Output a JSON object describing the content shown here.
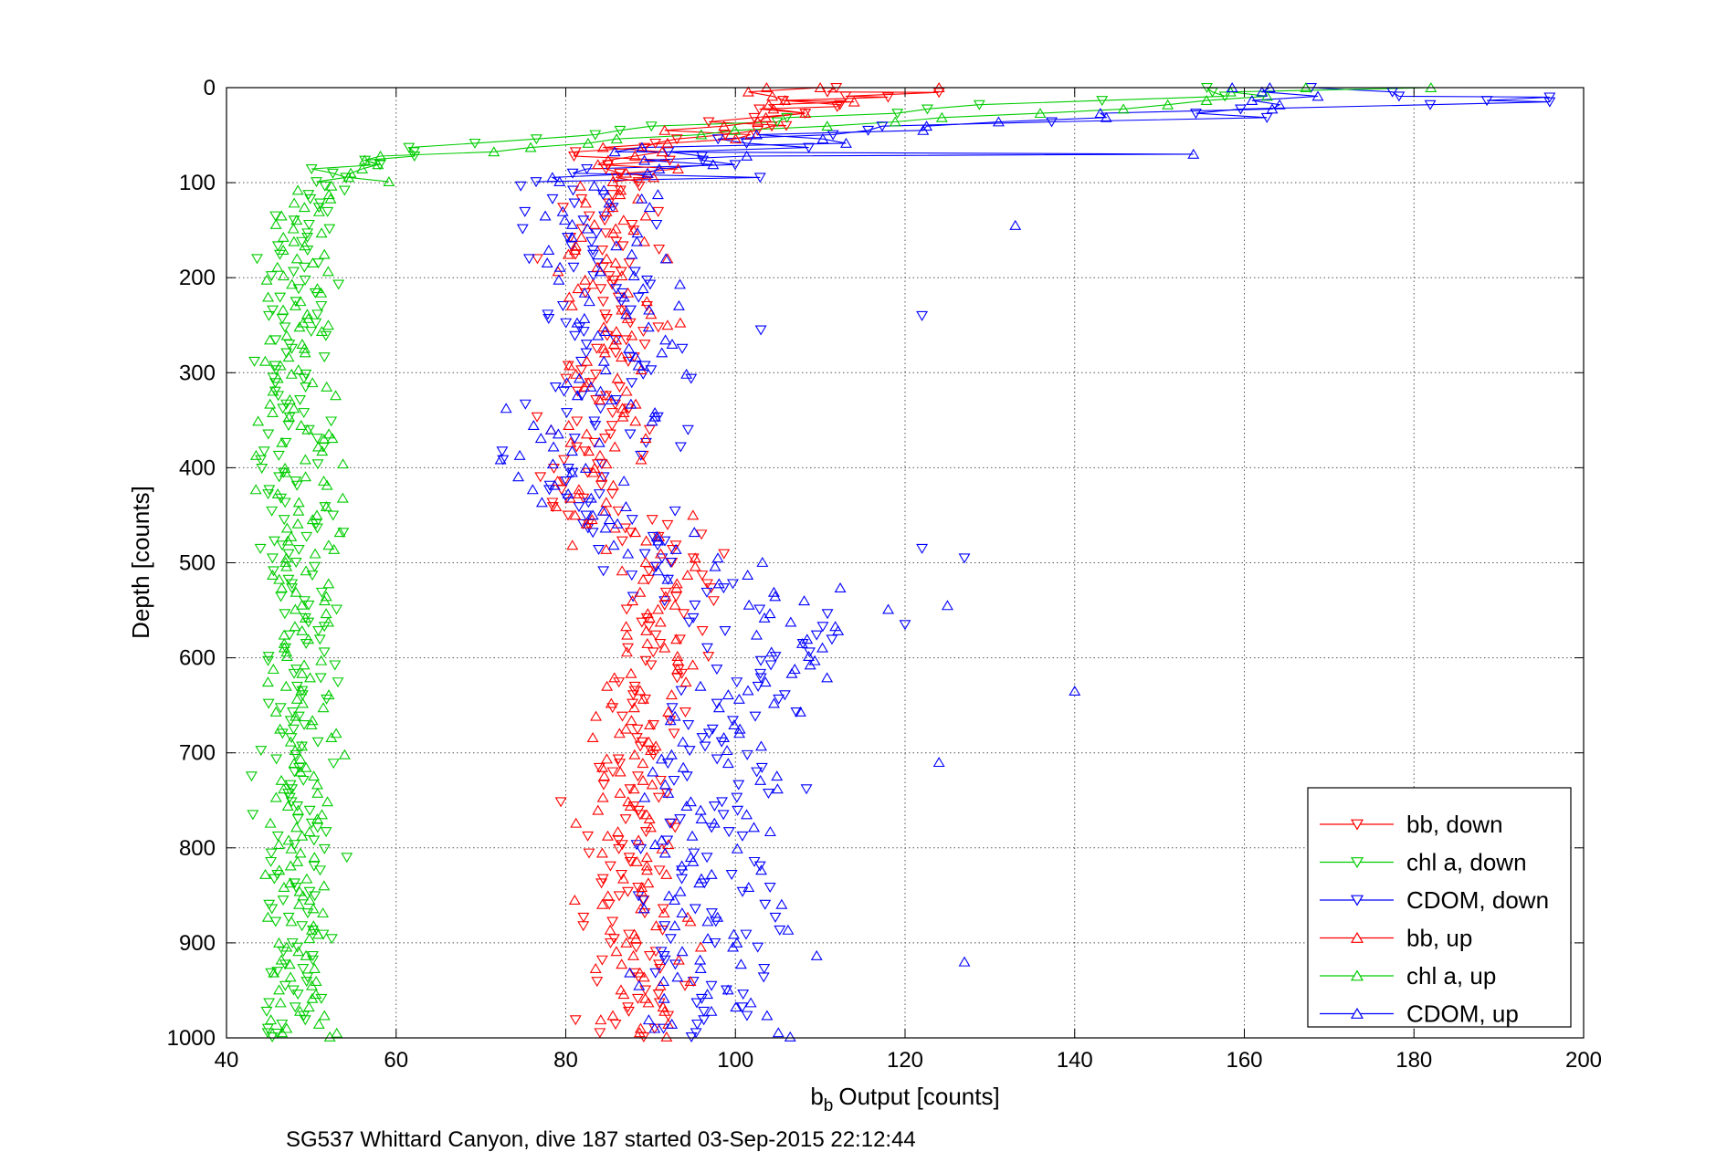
{
  "chart_data": {
    "type": "scatter",
    "title": "",
    "xlabel": "Output [counts]",
    "xlabel_symbol": "b",
    "xlabel_subscript": "b",
    "ylabel": "Depth [counts]",
    "caption": "SG537 Whittard Canyon, dive 187 started 03-Sep-2015 22:12:44",
    "xlim": [
      40,
      200
    ],
    "ylim": [
      0,
      1000
    ],
    "y_reversed": true,
    "grid": true,
    "legend_position": "bottom-right",
    "xticks": [
      "40",
      "60",
      "80",
      "100",
      "120",
      "140",
      "160",
      "180",
      "200"
    ],
    "yticks": [
      "0",
      "100",
      "200",
      "300",
      "400",
      "500",
      "600",
      "700",
      "800",
      "900",
      "1000"
    ],
    "series": [
      {
        "name": "bb, down",
        "color": "#ff0000",
        "marker": "triangle-down",
        "direction": "down",
        "profile": [
          [
            0,
            107
          ],
          [
            10,
            108
          ],
          [
            20,
            106
          ],
          [
            30,
            104
          ],
          [
            40,
            101
          ],
          [
            50,
            97
          ],
          [
            60,
            92
          ],
          [
            70,
            88
          ],
          [
            80,
            86
          ],
          [
            90,
            85
          ],
          [
            100,
            84
          ],
          [
            150,
            84
          ],
          [
            200,
            85
          ],
          [
            250,
            86
          ],
          [
            300,
            84
          ],
          [
            350,
            83
          ],
          [
            400,
            83
          ],
          [
            450,
            84
          ],
          [
            480,
            90
          ],
          [
            500,
            94
          ],
          [
            550,
            93
          ],
          [
            600,
            91
          ],
          [
            650,
            88
          ],
          [
            700,
            87
          ],
          [
            750,
            87
          ],
          [
            800,
            88
          ],
          [
            850,
            88
          ],
          [
            900,
            89
          ],
          [
            950,
            89
          ],
          [
            1000,
            89
          ]
        ],
        "spread": 3,
        "outliers": [
          [
            10,
            118
          ],
          [
            5,
            124
          ],
          [
            20,
            112
          ],
          [
            40,
            106
          ],
          [
            460,
            92
          ],
          [
            470,
            96
          ],
          [
            150,
            88
          ],
          [
            170,
            91
          ]
        ]
      },
      {
        "name": "chl a, down",
        "color": "#00cc00",
        "marker": "triangle-down",
        "direction": "down",
        "profile": [
          [
            0,
            158
          ],
          [
            10,
            148
          ],
          [
            20,
            128
          ],
          [
            30,
            108
          ],
          [
            40,
            93
          ],
          [
            50,
            80
          ],
          [
            60,
            68
          ],
          [
            70,
            60
          ],
          [
            80,
            56
          ],
          [
            90,
            53
          ],
          [
            100,
            51
          ],
          [
            120,
            50
          ],
          [
            150,
            49
          ],
          [
            200,
            48.5
          ],
          [
            300,
            48
          ],
          [
            400,
            48
          ],
          [
            500,
            48.5
          ],
          [
            600,
            48.5
          ],
          [
            700,
            48.5
          ],
          [
            800,
            48.5
          ],
          [
            900,
            48.5
          ],
          [
            1000,
            48
          ]
        ],
        "spread": 2.2,
        "outliers": [
          [
            485,
            44
          ],
          [
            240,
            45
          ],
          [
            305,
            45.5
          ],
          [
            930,
            46
          ],
          [
            995,
            46
          ]
        ]
      },
      {
        "name": "CDOM, down",
        "color": "#0000ff",
        "marker": "triangle-down",
        "direction": "down",
        "profile": [
          [
            0,
            170
          ],
          [
            10,
            175
          ],
          [
            20,
            172
          ],
          [
            30,
            150
          ],
          [
            40,
            120
          ],
          [
            50,
            108
          ],
          [
            60,
            100
          ],
          [
            70,
            94
          ],
          [
            80,
            88
          ],
          [
            90,
            85
          ],
          [
            100,
            84
          ],
          [
            150,
            82
          ],
          [
            200,
            84
          ],
          [
            250,
            86
          ],
          [
            300,
            85
          ],
          [
            350,
            84
          ],
          [
            400,
            82
          ],
          [
            450,
            82
          ],
          [
            500,
            90
          ],
          [
            550,
            100
          ],
          [
            600,
            104
          ],
          [
            650,
            98
          ],
          [
            700,
            96
          ],
          [
            750,
            96
          ],
          [
            800,
            96
          ],
          [
            850,
            96
          ],
          [
            900,
            95
          ],
          [
            950,
            96
          ],
          [
            1000,
            96
          ]
        ],
        "spread": 5,
        "outliers": [
          [
            10,
            196
          ],
          [
            15,
            196
          ],
          [
            485,
            122
          ],
          [
            495,
            127
          ],
          [
            565,
            120
          ],
          [
            255,
            103
          ],
          [
            240,
            122
          ]
        ]
      },
      {
        "name": "bb, up",
        "color": "#ff0000",
        "marker": "triangle-up",
        "direction": "up",
        "profile": [
          [
            0,
            106
          ],
          [
            10,
            106
          ],
          [
            20,
            104
          ],
          [
            30,
            101
          ],
          [
            40,
            98
          ],
          [
            50,
            94
          ],
          [
            60,
            90
          ],
          [
            70,
            87
          ],
          [
            80,
            85
          ],
          [
            90,
            84
          ],
          [
            100,
            84
          ],
          [
            150,
            85
          ],
          [
            200,
            85
          ],
          [
            250,
            86
          ],
          [
            300,
            85
          ],
          [
            350,
            84
          ],
          [
            400,
            84
          ],
          [
            450,
            84
          ],
          [
            500,
            90
          ],
          [
            550,
            92
          ],
          [
            600,
            91
          ],
          [
            650,
            88
          ],
          [
            700,
            87
          ],
          [
            750,
            87
          ],
          [
            800,
            88
          ],
          [
            850,
            88
          ],
          [
            900,
            89
          ],
          [
            950,
            89
          ],
          [
            1000,
            89
          ]
        ],
        "spread": 3,
        "outliers": [
          [
            0,
            124
          ],
          [
            0,
            110
          ],
          [
            15,
            114
          ],
          [
            150,
            88
          ],
          [
            180,
            92
          ],
          [
            250,
            92
          ],
          [
            450,
            95
          ]
        ]
      },
      {
        "name": "chl a, up",
        "color": "#00cc00",
        "marker": "triangle-up",
        "direction": "up",
        "profile": [
          [
            0,
            163
          ],
          [
            10,
            160
          ],
          [
            20,
            150
          ],
          [
            30,
            130
          ],
          [
            40,
            110
          ],
          [
            50,
            92
          ],
          [
            60,
            76
          ],
          [
            70,
            64
          ],
          [
            80,
            58
          ],
          [
            90,
            54
          ],
          [
            100,
            51
          ],
          [
            120,
            50
          ],
          [
            150,
            49
          ],
          [
            200,
            48.5
          ],
          [
            300,
            49
          ],
          [
            400,
            49
          ],
          [
            500,
            49
          ],
          [
            600,
            49
          ],
          [
            700,
            49
          ],
          [
            800,
            49
          ],
          [
            900,
            49
          ],
          [
            1000,
            49
          ]
        ],
        "spread": 2.2,
        "outliers": [
          [
            0,
            182
          ],
          [
            995,
            53
          ],
          [
            840,
            51.5
          ],
          [
            250,
            52
          ],
          [
            370,
            51.5
          ]
        ]
      },
      {
        "name": "CDOM, up",
        "color": "#0000ff",
        "marker": "triangle-up",
        "direction": "up",
        "profile": [
          [
            0,
            165
          ],
          [
            10,
            170
          ],
          [
            20,
            165
          ],
          [
            30,
            140
          ],
          [
            40,
            118
          ],
          [
            50,
            106
          ],
          [
            60,
            100
          ],
          [
            70,
            95
          ],
          [
            80,
            90
          ],
          [
            90,
            86
          ],
          [
            100,
            84
          ],
          [
            150,
            82
          ],
          [
            200,
            86
          ],
          [
            250,
            88
          ],
          [
            300,
            86
          ],
          [
            350,
            82
          ],
          [
            400,
            80
          ],
          [
            450,
            80
          ],
          [
            500,
            95
          ],
          [
            550,
            110
          ],
          [
            600,
            108
          ],
          [
            650,
            100
          ],
          [
            700,
            98
          ],
          [
            750,
            96
          ],
          [
            800,
            97
          ],
          [
            850,
            96
          ],
          [
            900,
            96
          ],
          [
            950,
            98
          ],
          [
            1000,
            98
          ]
        ],
        "spread": 5,
        "outliers": [
          [
            145,
            133
          ],
          [
            635,
            140
          ],
          [
            710,
            124
          ],
          [
            920,
            127
          ],
          [
            545,
            125
          ],
          [
            70,
            154
          ],
          [
            0,
            163
          ]
        ]
      }
    ]
  }
}
